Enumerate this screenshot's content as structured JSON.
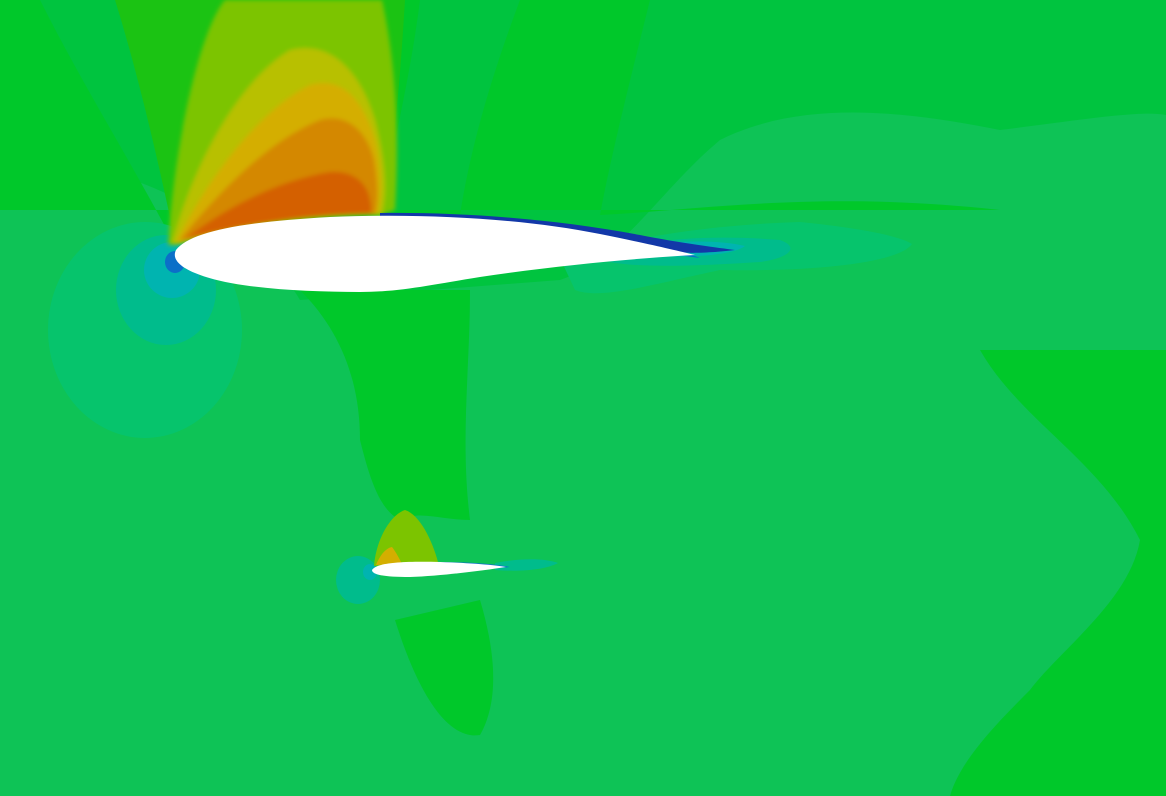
{
  "scene": {
    "colors": {
      "freestream": "#00c43f",
      "field_light": "#0ec356",
      "field_mid": "#00c82a",
      "field_upper": "#1bc313",
      "teal_light": "#06c46c",
      "teal": "#00bc8c",
      "cyan": "#00b4b0",
      "blue": "#0b6fc8",
      "deep_blue": "#1238a8",
      "yellow_green": "#7cc400",
      "yellow": "#b8c000",
      "amber": "#d4ae00",
      "orange": "#d48800",
      "orange_red": "#d46000",
      "airfoil": "#ffffff"
    }
  }
}
